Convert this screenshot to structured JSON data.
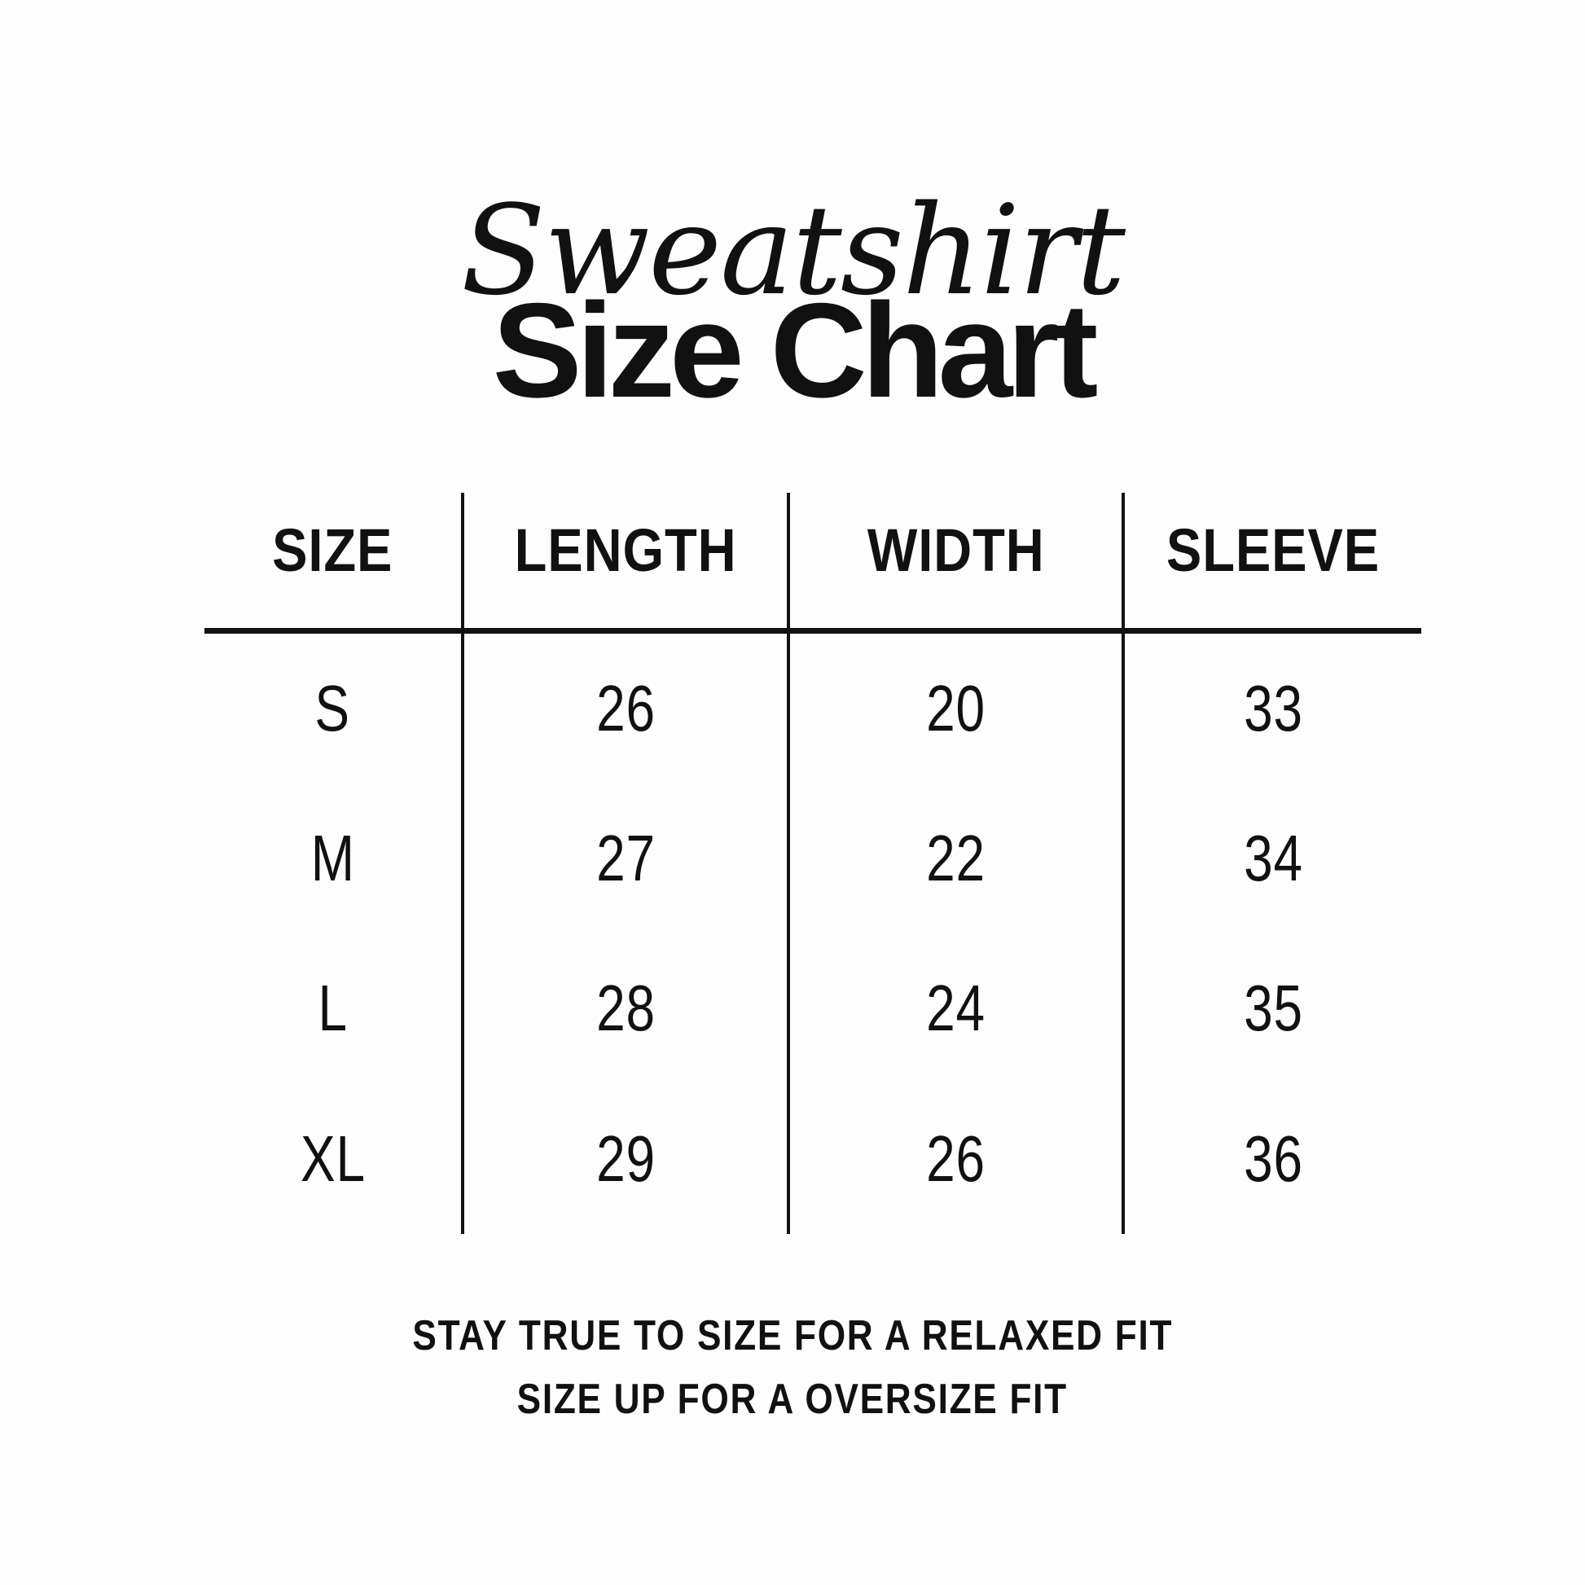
{
  "title": {
    "script": "Sweatshirt",
    "main": "Size Chart"
  },
  "table": {
    "headers": [
      "SIZE",
      "LENGTH",
      "WIDTH",
      "SLEEVE"
    ],
    "rows": [
      [
        "S",
        "26",
        "20",
        "33"
      ],
      [
        "M",
        "27",
        "22",
        "34"
      ],
      [
        "L",
        "28",
        "24",
        "35"
      ],
      [
        "XL",
        "29",
        "26",
        "36"
      ]
    ]
  },
  "footer": {
    "line1": "STAY TRUE TO SIZE FOR A RELAXED FIT",
    "line2": "SIZE UP FOR A OVERSIZE FIT"
  },
  "colors": {
    "background": "#fdfdfd",
    "ink": "#111111",
    "rule": "#121212"
  },
  "chart_data": {
    "type": "table",
    "title": "Sweatshirt Size Chart",
    "columns": [
      "SIZE",
      "LENGTH",
      "WIDTH",
      "SLEEVE"
    ],
    "rows": [
      {
        "size": "S",
        "length": 26,
        "width": 20,
        "sleeve": 33
      },
      {
        "size": "M",
        "length": 27,
        "width": 22,
        "sleeve": 34
      },
      {
        "size": "L",
        "length": 28,
        "width": 24,
        "sleeve": 35
      },
      {
        "size": "XL",
        "length": 29,
        "width": 26,
        "sleeve": 36
      }
    ],
    "notes": [
      "STAY TRUE TO SIZE FOR A RELAXED FIT",
      "SIZE UP FOR A OVERSIZE FIT"
    ]
  }
}
